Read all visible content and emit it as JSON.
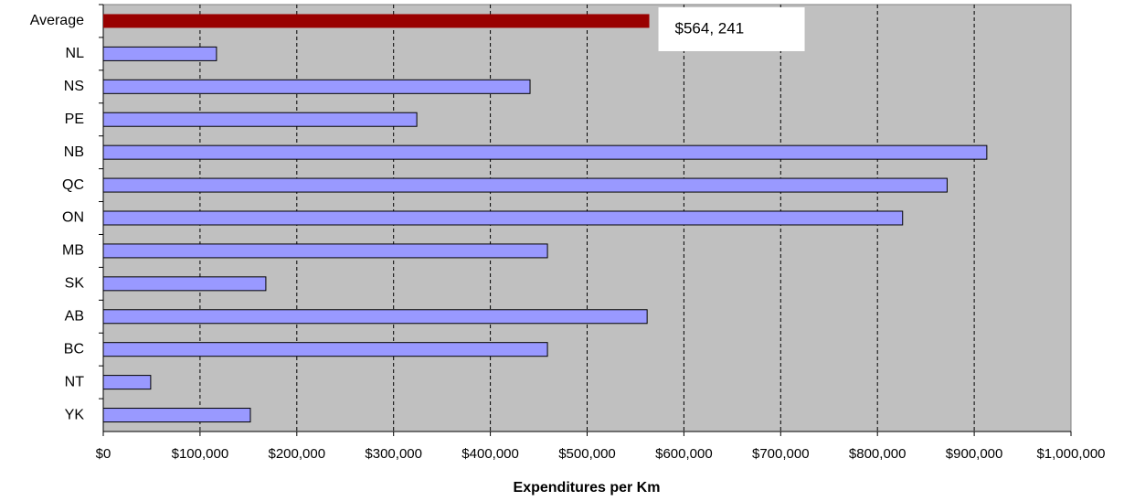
{
  "chart_data": {
    "type": "bar",
    "orientation": "horizontal",
    "x_label": "Expenditures per Km",
    "categories": [
      "Average",
      "NL",
      "NS",
      "PE",
      "NB",
      "QC",
      "ON",
      "MB",
      "SK",
      "AB",
      "BC",
      "NT",
      "YK"
    ],
    "values": [
      564241,
      117000,
      441000,
      324000,
      913000,
      872000,
      826000,
      459000,
      168000,
      562000,
      459000,
      49000,
      152000
    ],
    "value_labels": [
      "$564, 241",
      null,
      null,
      null,
      null,
      null,
      null,
      null,
      null,
      null,
      null,
      null,
      null
    ],
    "colors": [
      "#990000",
      "#9999ff",
      "#9999ff",
      "#9999ff",
      "#9999ff",
      "#9999ff",
      "#9999ff",
      "#9999ff",
      "#9999ff",
      "#9999ff",
      "#9999ff",
      "#9999ff",
      "#9999ff"
    ],
    "xlim": [
      0,
      1000000
    ],
    "xticks": [
      {
        "value": 0,
        "label": "$0"
      },
      {
        "value": 100000,
        "label": "$100,000"
      },
      {
        "value": 200000,
        "label": "$200,000"
      },
      {
        "value": 300000,
        "label": "$300,000"
      },
      {
        "value": 400000,
        "label": "$400,000"
      },
      {
        "value": 500000,
        "label": "$500,000"
      },
      {
        "value": 600000,
        "label": "$600,000"
      },
      {
        "value": 700000,
        "label": "$700,000"
      },
      {
        "value": 800000,
        "label": "$800,000"
      },
      {
        "value": 900000,
        "label": "$900,000"
      },
      {
        "value": 1000000,
        "label": "$1,000,000"
      }
    ],
    "grid": true,
    "plot_background": "#c0c0c0"
  }
}
